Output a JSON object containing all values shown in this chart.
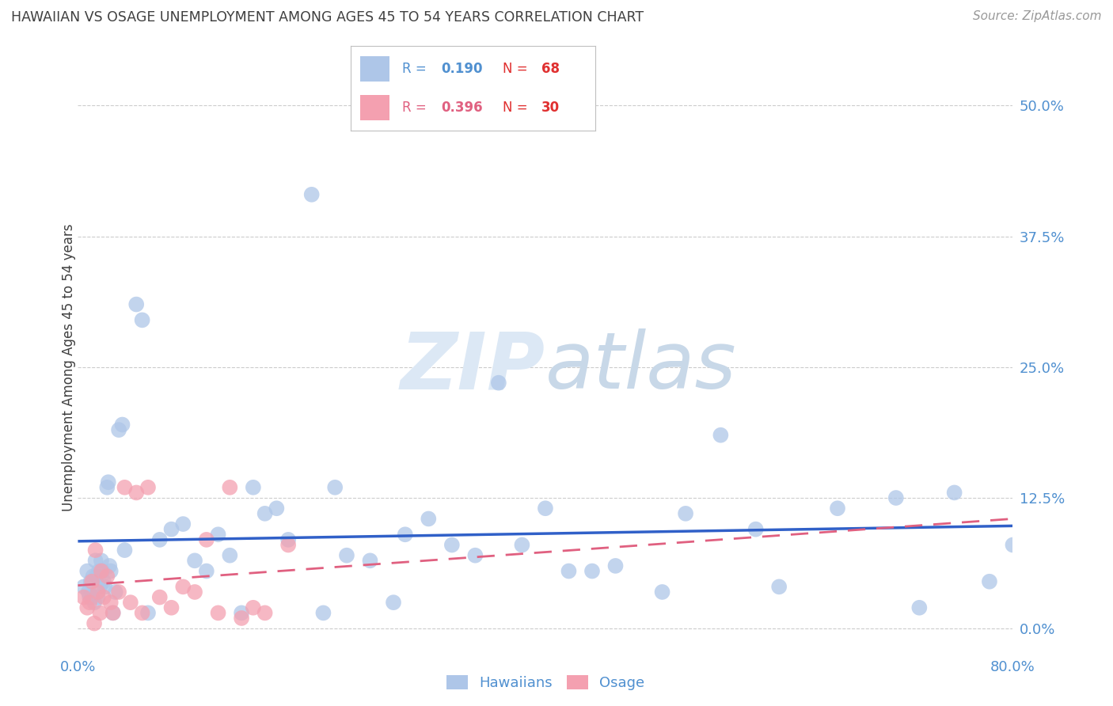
{
  "title": "HAWAIIAN VS OSAGE UNEMPLOYMENT AMONG AGES 45 TO 54 YEARS CORRELATION CHART",
  "source": "Source: ZipAtlas.com",
  "ylabel": "Unemployment Among Ages 45 to 54 years",
  "ytick_labels": [
    "0.0%",
    "12.5%",
    "25.0%",
    "37.5%",
    "50.0%"
  ],
  "ytick_values": [
    0.0,
    12.5,
    25.0,
    37.5,
    50.0
  ],
  "xmin": 0.0,
  "xmax": 80.0,
  "ymin": -2.0,
  "ymax": 52.0,
  "hawaiians_R": 0.19,
  "hawaiians_N": 68,
  "osage_R": 0.396,
  "osage_N": 30,
  "hawaiians_color": "#aec6e8",
  "osage_color": "#f4a0b0",
  "hawaiians_line_color": "#3060c8",
  "osage_line_color": "#e06080",
  "title_color": "#404040",
  "axis_label_color": "#5090d0",
  "watermark_color": "#dce8f5",
  "hawaiians_x": [
    0.5,
    0.8,
    0.9,
    1.0,
    1.1,
    1.2,
    1.3,
    1.4,
    1.5,
    1.6,
    1.7,
    1.8,
    1.9,
    2.0,
    2.1,
    2.2,
    2.3,
    2.5,
    2.6,
    2.7,
    2.8,
    3.0,
    3.2,
    3.5,
    3.8,
    4.0,
    5.0,
    5.5,
    6.0,
    7.0,
    8.0,
    9.0,
    10.0,
    11.0,
    12.0,
    13.0,
    14.0,
    15.0,
    16.0,
    17.0,
    18.0,
    20.0,
    21.0,
    22.0,
    23.0,
    25.0,
    27.0,
    28.0,
    30.0,
    32.0,
    34.0,
    36.0,
    38.0,
    40.0,
    42.0,
    44.0,
    46.0,
    50.0,
    52.0,
    55.0,
    58.0,
    60.0,
    65.0,
    70.0,
    72.0,
    75.0,
    78.0,
    80.0
  ],
  "hawaiians_y": [
    4.0,
    5.5,
    3.5,
    3.0,
    4.5,
    3.0,
    5.0,
    2.5,
    6.5,
    5.0,
    3.0,
    5.5,
    4.0,
    6.5,
    5.5,
    4.5,
    4.0,
    13.5,
    14.0,
    6.0,
    5.5,
    1.5,
    3.5,
    19.0,
    19.5,
    7.5,
    31.0,
    29.5,
    1.5,
    8.5,
    9.5,
    10.0,
    6.5,
    5.5,
    9.0,
    7.0,
    1.5,
    13.5,
    11.0,
    11.5,
    8.5,
    41.5,
    1.5,
    13.5,
    7.0,
    6.5,
    2.5,
    9.0,
    10.5,
    8.0,
    7.0,
    23.5,
    8.0,
    11.5,
    5.5,
    5.5,
    6.0,
    3.5,
    11.0,
    18.5,
    9.5,
    4.0,
    11.5,
    12.5,
    2.0,
    13.0,
    4.5,
    8.0
  ],
  "osage_x": [
    0.5,
    0.8,
    1.0,
    1.2,
    1.4,
    1.5,
    1.7,
    1.9,
    2.0,
    2.2,
    2.5,
    2.8,
    3.0,
    3.5,
    4.0,
    4.5,
    5.0,
    5.5,
    6.0,
    7.0,
    8.0,
    9.0,
    10.0,
    11.0,
    12.0,
    13.0,
    14.0,
    15.0,
    16.0,
    18.0
  ],
  "osage_y": [
    3.0,
    2.0,
    2.5,
    4.5,
    0.5,
    7.5,
    3.5,
    1.5,
    5.5,
    3.0,
    5.0,
    2.5,
    1.5,
    3.5,
    13.5,
    2.5,
    13.0,
    1.5,
    13.5,
    3.0,
    2.0,
    4.0,
    3.5,
    8.5,
    1.5,
    13.5,
    1.0,
    2.0,
    1.5,
    8.0
  ]
}
